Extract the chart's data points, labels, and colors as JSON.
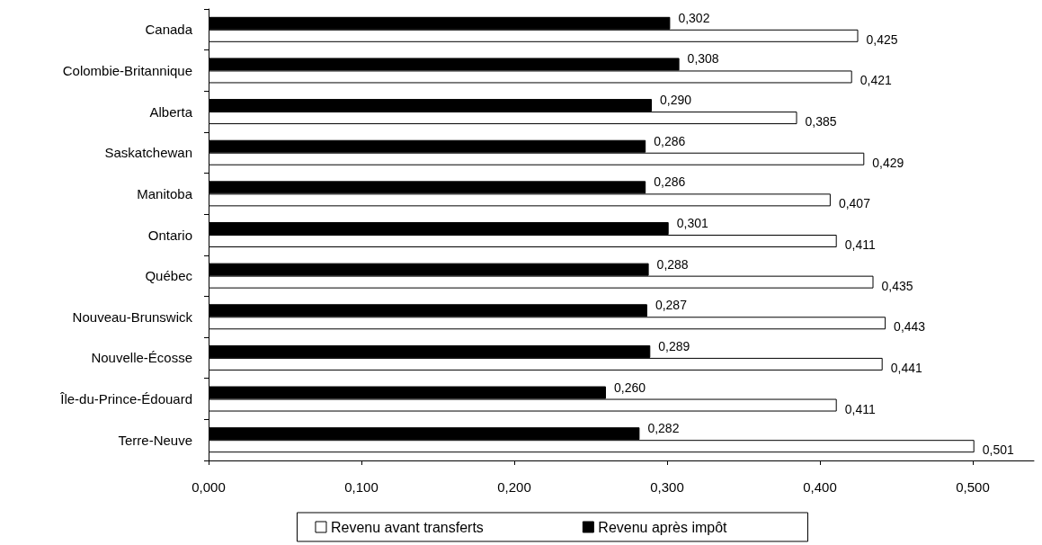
{
  "chart_data": {
    "type": "bar",
    "orientation": "horizontal",
    "categories": [
      "Canada",
      "Colombie-Britannique",
      "Alberta",
      "Saskatchewan",
      "Manitoba",
      "Ontario",
      "Québec",
      "Nouveau-Brunswick",
      "Nouvelle-Écosse",
      "Île-du-Prince-Édouard",
      "Terre-Neuve"
    ],
    "series": [
      {
        "name": "Revenu avant transferts",
        "color": "#ffffff",
        "values": [
          0.425,
          0.421,
          0.385,
          0.429,
          0.407,
          0.411,
          0.435,
          0.443,
          0.441,
          0.411,
          0.501
        ],
        "value_labels": [
          "0,425",
          "0,421",
          "0,385",
          "0,429",
          "0,407",
          "0,411",
          "0,435",
          "0,443",
          "0,441",
          "0,411",
          "0,501"
        ]
      },
      {
        "name": "Revenu après impôt",
        "color": "#000000",
        "values": [
          0.302,
          0.308,
          0.29,
          0.286,
          0.286,
          0.301,
          0.288,
          0.287,
          0.289,
          0.26,
          0.282
        ],
        "value_labels": [
          "0,302",
          "0,308",
          "0,290",
          "0,286",
          "0,286",
          "0,301",
          "0,288",
          "0,287",
          "0,289",
          "0,260",
          "0,282"
        ]
      }
    ],
    "xlim": [
      0,
      0.54
    ],
    "xticks": [
      {
        "value": 0,
        "label": "0,000"
      },
      {
        "value": 0.1,
        "label": "0,100"
      },
      {
        "value": 0.2,
        "label": "0,200"
      },
      {
        "value": 0.3,
        "label": "0,300"
      },
      {
        "value": 0.4,
        "label": "0,400"
      },
      {
        "value": 0.5,
        "label": "0,500"
      }
    ],
    "grid": false,
    "legend": "bottom"
  }
}
